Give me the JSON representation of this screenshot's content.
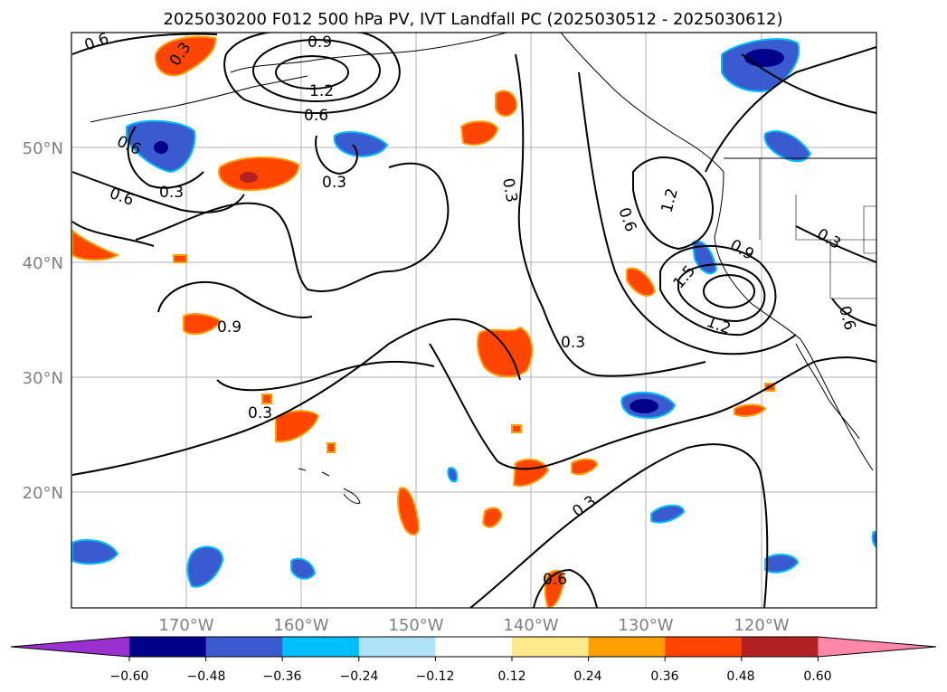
{
  "title": "2025030200 F012 500 hPa PV, IVT Landfall PC (2025030512 - 2025030612)",
  "map": {
    "lon_ticks": [
      "170°W",
      "160°W",
      "150°W",
      "140°W",
      "130°W",
      "120°W"
    ],
    "lat_ticks": [
      "50°N",
      "40°N",
      "30°N",
      "20°N"
    ],
    "grid": true,
    "grid_color": "#b0b0b0",
    "axis_label_color": "#808080"
  },
  "contour_labels": [
    {
      "text": "0.6"
    },
    {
      "text": "0.3"
    },
    {
      "text": "0.9"
    },
    {
      "text": "1.2"
    },
    {
      "text": "0.6"
    },
    {
      "text": "0.6"
    },
    {
      "text": "0.3"
    },
    {
      "text": "0.6"
    },
    {
      "text": "0.3"
    },
    {
      "text": "0.9"
    },
    {
      "text": "0.3"
    },
    {
      "text": "1.2"
    },
    {
      "text": "0.6"
    },
    {
      "text": "0.9"
    },
    {
      "text": "1.5"
    },
    {
      "text": "1.2"
    },
    {
      "text": "0.3"
    },
    {
      "text": "0.6"
    },
    {
      "text": "0.3"
    },
    {
      "text": "0.3"
    },
    {
      "text": "0.3"
    },
    {
      "text": "0.6"
    }
  ],
  "colorbar": {
    "ticks": [
      "−0.60",
      "−0.48",
      "−0.36",
      "−0.24",
      "−0.12",
      "0.12",
      "0.24",
      "0.36",
      "0.48",
      "0.60"
    ],
    "colors": [
      "#9b30d0",
      "#00008b",
      "#3a5bd0",
      "#00bfff",
      "#aee3fa",
      "#ffffff",
      "#ffe98c",
      "#ffa000",
      "#ff4500",
      "#b22222",
      "#ff88aa"
    ]
  }
}
